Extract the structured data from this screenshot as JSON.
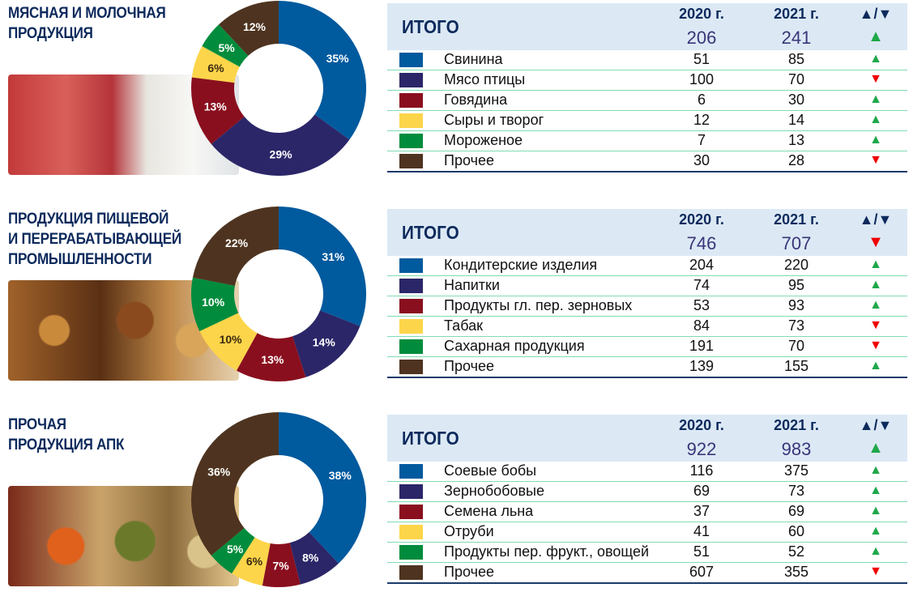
{
  "header_labels": {
    "total": "ИТОГО",
    "year1": "2020 г.",
    "year2": "2021 г.",
    "trend": "▲/▼"
  },
  "colors": [
    "#005a9e",
    "#2b2668",
    "#8a0f1e",
    "#fdd54a",
    "#008c3c",
    "#4e3420"
  ],
  "sections": [
    {
      "title": "МЯСНАЯ И МОЛОЧНАЯ\nПРОДУКЦИЯ",
      "photo": "meat-and-milk-photo",
      "total_2020": "206",
      "total_2021": "241",
      "total_trend": "up",
      "rows": [
        {
          "label": "Свинина",
          "v2020": "51",
          "v2021": "85",
          "trend": "up"
        },
        {
          "label": "Мясо птицы",
          "v2020": "100",
          "v2021": "70",
          "trend": "down"
        },
        {
          "label": "Говядина",
          "v2020": "6",
          "v2021": "30",
          "trend": "up"
        },
        {
          "label": "Сыры и творог",
          "v2020": "12",
          "v2021": "14",
          "trend": "up"
        },
        {
          "label": "Мороженое",
          "v2020": "7",
          "v2021": "13",
          "trend": "up"
        },
        {
          "label": "Прочее",
          "v2020": "30",
          "v2021": "28",
          "trend": "down"
        }
      ]
    },
    {
      "title": "ПРОДУКЦИЯ ПИЩЕВОЙ\nИ ПЕРЕРАБАТЫВАЮЩЕЙ\nПРОМЫШЛЕННОСТИ",
      "photo": "pastry-photo",
      "total_2020": "746",
      "total_2021": "707",
      "total_trend": "down",
      "rows": [
        {
          "label": "Кондитерские изделия",
          "v2020": "204",
          "v2021": "220",
          "trend": "up"
        },
        {
          "label": "Напитки",
          "v2020": "74",
          "v2021": "95",
          "trend": "up"
        },
        {
          "label": "Продукты гл. пер. зерновых",
          "v2020": "53",
          "v2021": "93",
          "trend": "up"
        },
        {
          "label": "Табак",
          "v2020": "84",
          "v2021": "73",
          "trend": "down"
        },
        {
          "label": "Сахарная продукция",
          "v2020": "191",
          "v2021": "70",
          "trend": "down"
        },
        {
          "label": "Прочее",
          "v2020": "139",
          "v2021": "155",
          "trend": "up"
        }
      ]
    },
    {
      "title": "ПРОЧАЯ\nПРОДУКЦИЯ АПК",
      "photo": "beans-and-grains-photo",
      "total_2020": "922",
      "total_2021": "983",
      "total_trend": "up",
      "rows": [
        {
          "label": "Соевые бобы",
          "v2020": "116",
          "v2021": "375",
          "trend": "up"
        },
        {
          "label": "Зернобобовые",
          "v2020": "69",
          "v2021": "73",
          "trend": "up"
        },
        {
          "label": "Семена льна",
          "v2020": "37",
          "v2021": "69",
          "trend": "up"
        },
        {
          "label": "Отруби",
          "v2020": "41",
          "v2021": "60",
          "trend": "up"
        },
        {
          "label": "Продукты пер. фрукт., овощей",
          "v2020": "51",
          "v2021": "52",
          "trend": "up"
        },
        {
          "label": "Прочее",
          "v2020": "607",
          "v2021": "355",
          "trend": "down"
        }
      ]
    }
  ],
  "chart_data": [
    {
      "type": "pie",
      "style": "donut",
      "categories": [
        "Свинина",
        "Мясо птицы",
        "Говядина",
        "Сыры и творог",
        "Мороженое",
        "Прочее"
      ],
      "values": [
        35,
        29,
        13,
        6,
        5,
        12
      ],
      "labels": [
        "35%",
        "29%",
        "13%",
        "6%",
        "5%",
        "12%"
      ]
    },
    {
      "type": "pie",
      "style": "donut",
      "categories": [
        "Кондитерские изделия",
        "Напитки",
        "Продукты гл. пер. зерновых",
        "Табак",
        "Сахарная продукция",
        "Прочее"
      ],
      "values": [
        31,
        14,
        13,
        10,
        10,
        22
      ],
      "labels": [
        "31%",
        "14%",
        "13%",
        "10%",
        "10%",
        "22%"
      ]
    },
    {
      "type": "pie",
      "style": "donut",
      "categories": [
        "Соевые бобы",
        "Зернобобовые",
        "Семена льна",
        "Отруби",
        "Продукты пер. фрукт., овощей",
        "Прочее"
      ],
      "values": [
        38,
        8,
        7,
        6,
        5,
        36
      ],
      "labels": [
        "38%",
        "8%",
        "7%",
        "6%",
        "5%",
        "36%"
      ]
    }
  ]
}
